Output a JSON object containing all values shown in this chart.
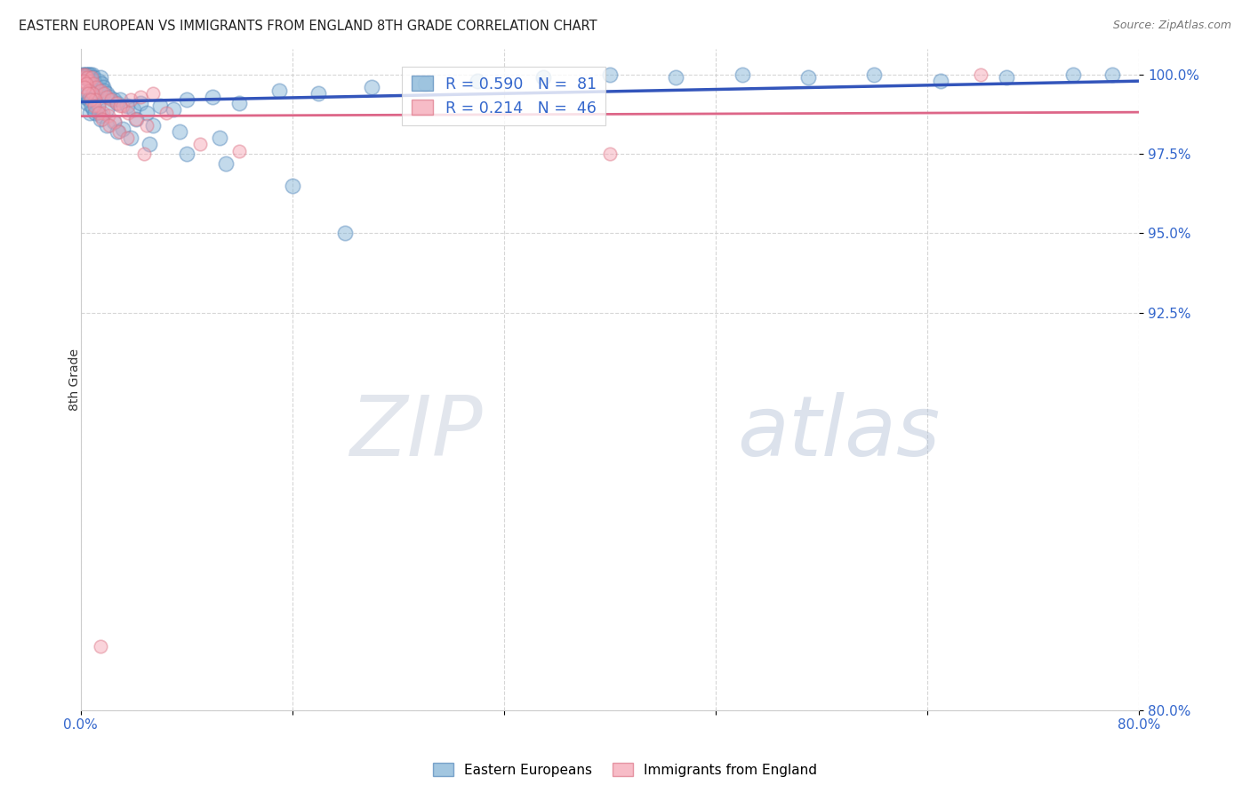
{
  "title": "EASTERN EUROPEAN VS IMMIGRANTS FROM ENGLAND 8TH GRADE CORRELATION CHART",
  "source": "Source: ZipAtlas.com",
  "ylabel": "8th Grade",
  "xlim": [
    0.0,
    80.0
  ],
  "ylim": [
    80.0,
    100.8
  ],
  "xticks": [
    0.0,
    16.0,
    32.0,
    48.0,
    64.0,
    80.0
  ],
  "xticklabels": [
    "0.0%",
    "",
    "",
    "",
    "",
    "80.0%"
  ],
  "yticks": [
    80.0,
    92.5,
    95.0,
    97.5,
    100.0
  ],
  "yticklabels": [
    "80.0%",
    "92.5%",
    "95.0%",
    "97.5%",
    "100.0%"
  ],
  "watermark_zip": "ZIP",
  "watermark_atlas": "atlas",
  "blue_R": 0.59,
  "blue_N": 81,
  "pink_R": 0.214,
  "pink_N": 46,
  "blue_color": "#7bafd4",
  "pink_color": "#f4a0b0",
  "blue_edge": "#5588bb",
  "pink_edge": "#dd7788",
  "blue_line_color": "#3355bb",
  "pink_line_color": "#dd6688",
  "legend_label_blue": "Eastern Europeans",
  "legend_label_pink": "Immigrants from England",
  "blue_x": [
    0.15,
    0.2,
    0.25,
    0.3,
    0.35,
    0.4,
    0.45,
    0.5,
    0.55,
    0.6,
    0.65,
    0.7,
    0.75,
    0.8,
    0.85,
    0.9,
    0.95,
    1.0,
    1.1,
    1.2,
    1.3,
    1.4,
    1.5,
    1.6,
    1.7,
    1.8,
    2.0,
    2.2,
    2.5,
    2.8,
    3.0,
    3.5,
    4.0,
    4.5,
    5.0,
    6.0,
    7.0,
    8.0,
    10.0,
    12.0,
    15.0,
    18.0,
    22.0,
    26.0,
    30.0,
    35.0,
    40.0,
    45.0,
    50.0,
    55.0,
    60.0,
    65.0,
    70.0,
    75.0,
    78.0,
    0.3,
    0.5,
    0.7,
    1.0,
    1.3,
    1.6,
    2.0,
    2.5,
    3.2,
    4.2,
    5.5,
    7.5,
    10.5,
    0.4,
    0.6,
    0.8,
    1.1,
    1.5,
    2.0,
    2.8,
    3.8,
    5.2,
    8.0,
    11.0,
    16.0,
    20.0
  ],
  "blue_y": [
    100.0,
    99.9,
    100.0,
    99.9,
    100.0,
    100.0,
    99.9,
    100.0,
    99.9,
    100.0,
    100.0,
    99.9,
    100.0,
    99.8,
    99.9,
    100.0,
    99.9,
    99.8,
    99.7,
    99.6,
    99.5,
    99.8,
    99.9,
    99.7,
    99.6,
    99.5,
    99.4,
    99.3,
    99.2,
    99.1,
    99.2,
    99.0,
    98.9,
    99.1,
    98.8,
    99.0,
    98.9,
    99.2,
    99.3,
    99.1,
    99.5,
    99.4,
    99.6,
    99.7,
    99.8,
    99.9,
    100.0,
    99.9,
    100.0,
    99.9,
    100.0,
    99.8,
    99.9,
    100.0,
    100.0,
    99.3,
    99.1,
    98.8,
    98.9,
    99.0,
    98.7,
    98.9,
    98.5,
    98.3,
    98.6,
    98.4,
    98.2,
    98.0,
    99.4,
    99.2,
    99.0,
    98.8,
    98.6,
    98.4,
    98.2,
    98.0,
    97.8,
    97.5,
    97.2,
    96.5,
    95.0
  ],
  "pink_x": [
    0.15,
    0.25,
    0.35,
    0.5,
    0.65,
    0.8,
    1.0,
    1.2,
    1.5,
    1.8,
    2.0,
    2.3,
    2.7,
    3.2,
    3.8,
    4.5,
    5.5,
    0.2,
    0.4,
    0.6,
    0.9,
    1.1,
    1.4,
    1.7,
    2.1,
    2.6,
    3.0,
    3.6,
    4.2,
    5.0,
    0.3,
    0.55,
    0.75,
    1.05,
    1.35,
    1.65,
    2.2,
    2.9,
    3.5,
    4.8,
    6.5,
    9.0,
    12.0,
    40.0,
    68.0,
    1.5
  ],
  "pink_y": [
    100.0,
    99.9,
    100.0,
    99.9,
    99.8,
    99.9,
    99.7,
    99.6,
    99.5,
    99.4,
    99.3,
    99.2,
    99.1,
    99.0,
    99.2,
    99.3,
    99.4,
    99.8,
    99.7,
    99.5,
    99.4,
    99.2,
    99.0,
    98.8,
    98.7,
    98.5,
    99.0,
    98.8,
    98.6,
    98.4,
    99.6,
    99.4,
    99.2,
    99.0,
    98.8,
    98.6,
    98.4,
    98.2,
    98.0,
    97.5,
    98.8,
    97.8,
    97.6,
    97.5,
    100.0,
    82.0
  ],
  "blue_line_x": [
    0.0,
    80.0
  ],
  "blue_line_y": [
    98.3,
    100.2
  ],
  "pink_line_x": [
    0.0,
    80.0
  ],
  "pink_line_y": [
    98.6,
    100.1
  ]
}
